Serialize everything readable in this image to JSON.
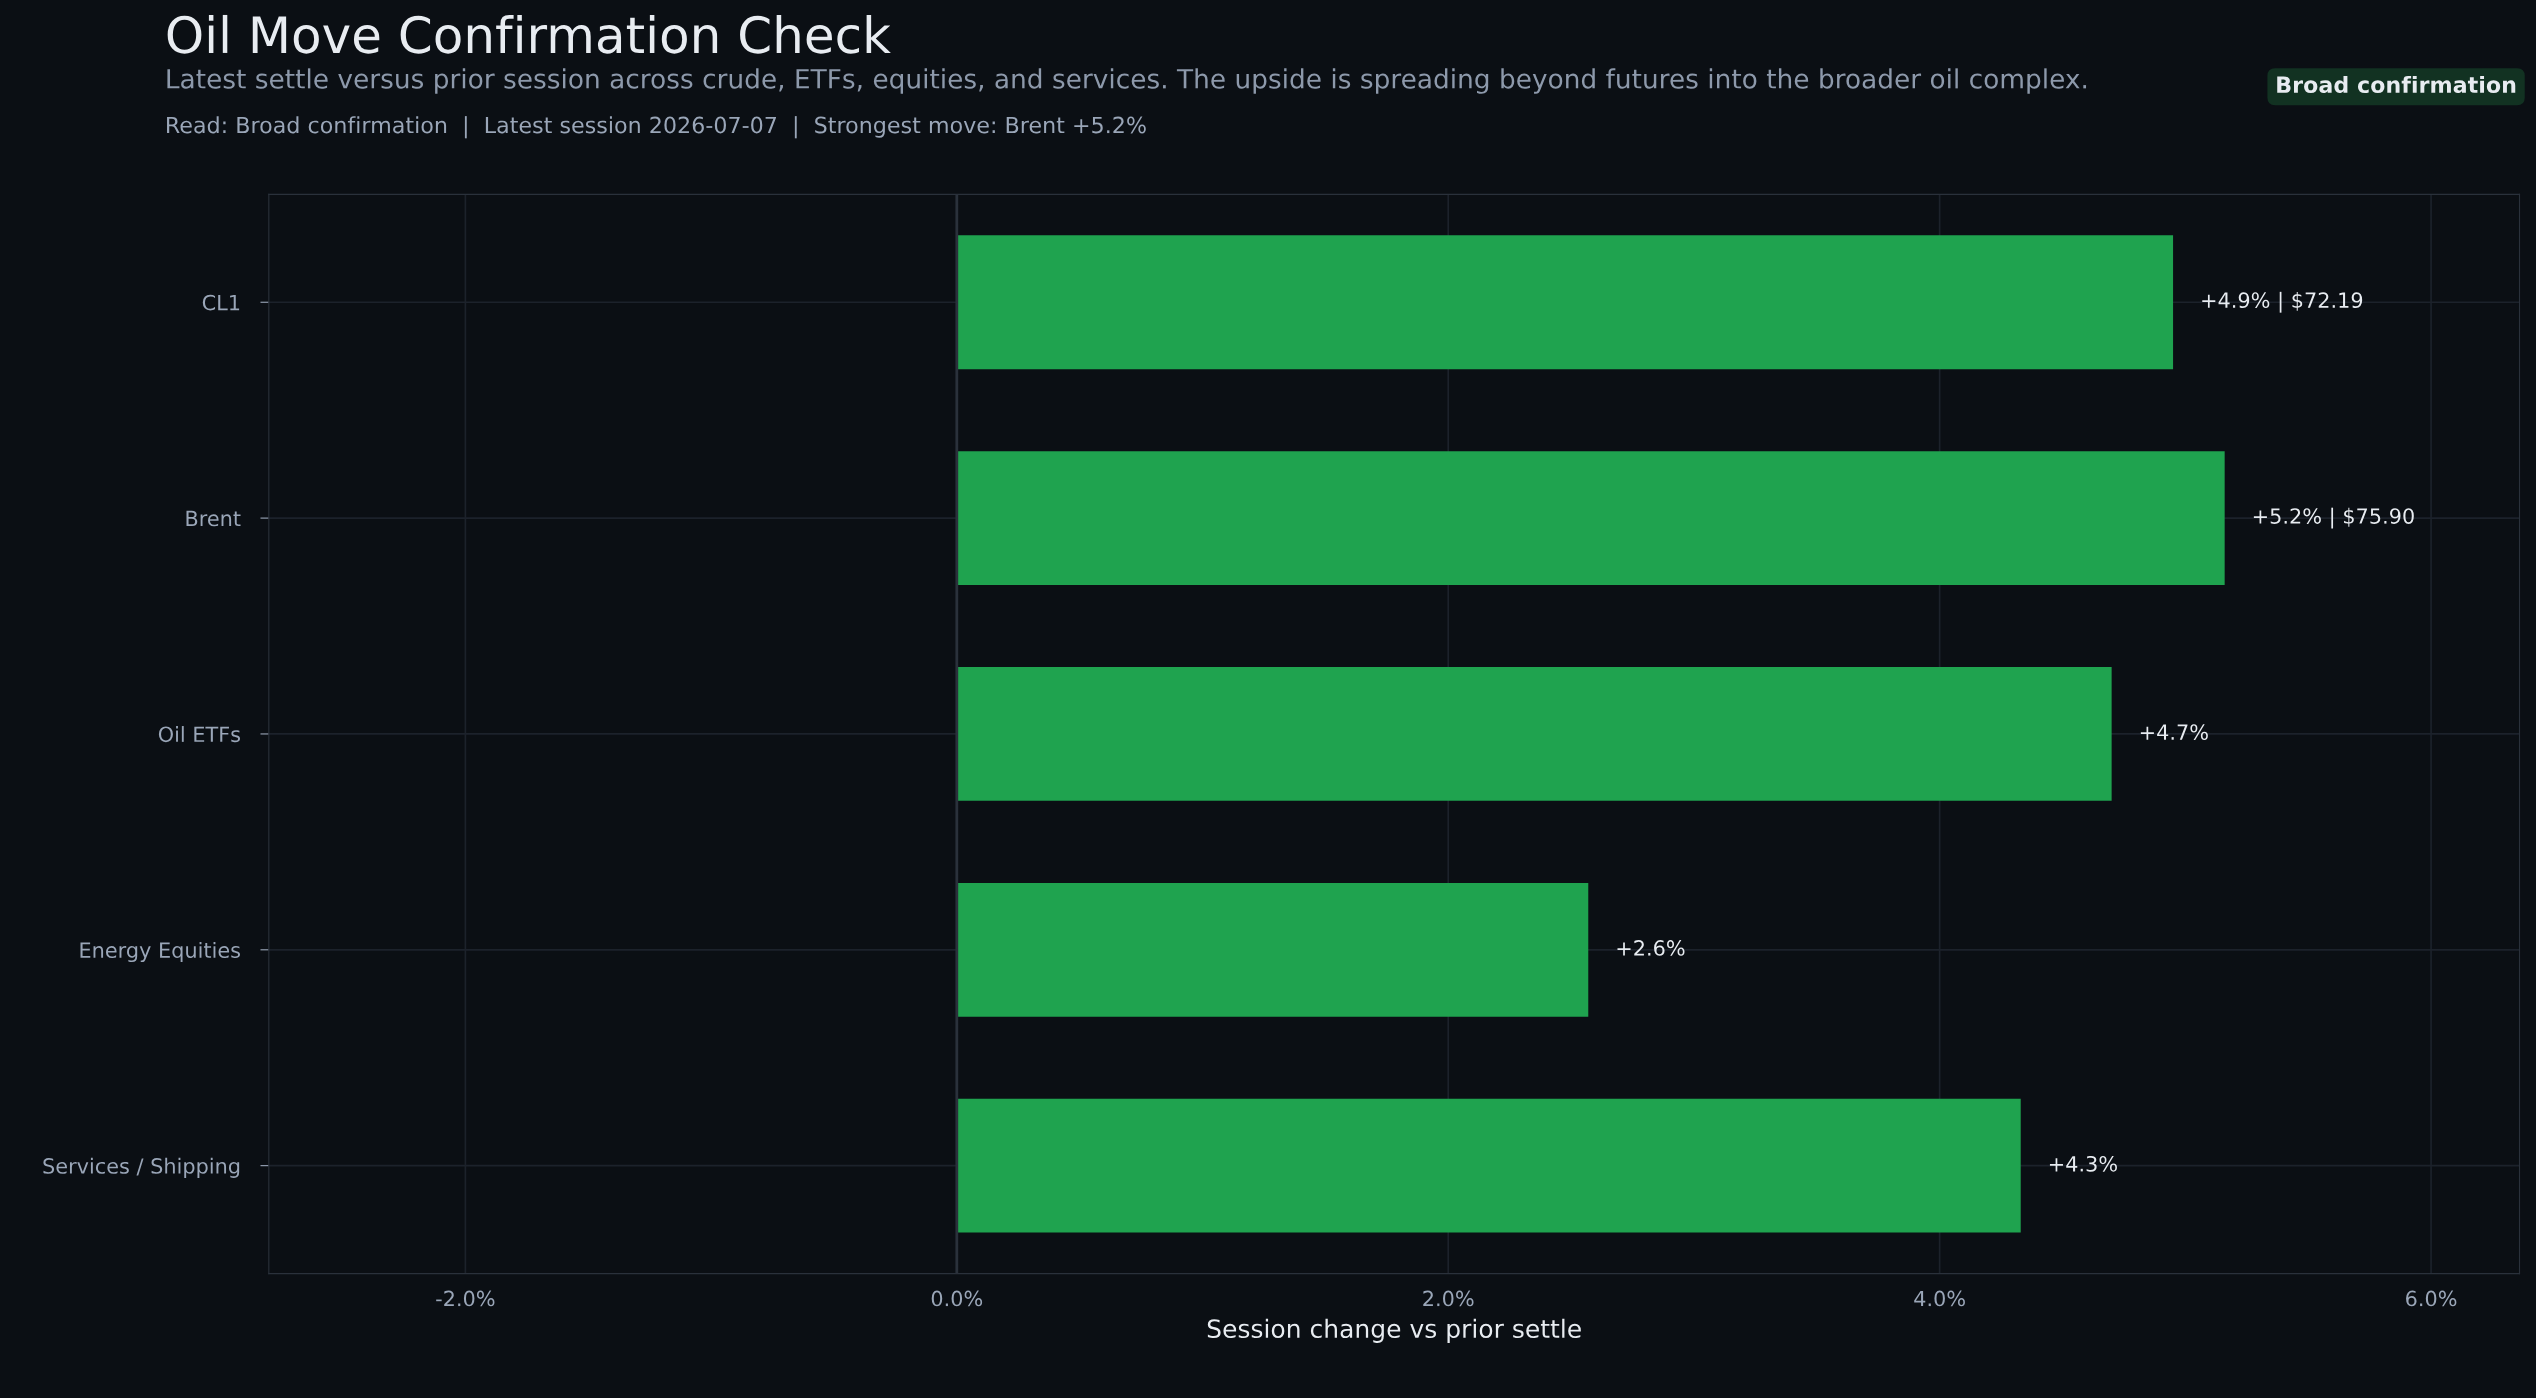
{
  "chart_data": {
    "type": "bar",
    "orientation": "horizontal",
    "title": "Oil Move Confirmation Check",
    "subtitle": "Latest settle versus prior session across crude, ETFs, equities, and services. The upside is spreading beyond futures into the broader oil complex.",
    "annotations": [
      "Read: Broad confirmation  |  Latest session 2026-07-07  |  Strongest move: Brent +5.2%",
      "Broad confirmation"
    ],
    "xlabel": "Session change vs prior settle",
    "categories": [
      "CL1",
      "Brent",
      "Oil ETFs",
      "Energy Equities",
      "Services / Shipping"
    ],
    "values": [
      4.95,
      5.16,
      4.7,
      2.57,
      4.33
    ],
    "value_labels": [
      "+4.9% | $72.19",
      "+5.2% | $75.90",
      "+4.7%",
      "+2.6%",
      "+4.3%"
    ],
    "color": "#1fa34f",
    "xlim": [
      -2.8,
      6.36
    ],
    "xticks": [
      {
        "value": -2,
        "label": "-2.0%"
      },
      {
        "value": 0,
        "label": "0.0%"
      },
      {
        "value": 2,
        "label": "2.0%"
      },
      {
        "value": 4,
        "label": "4.0%"
      },
      {
        "value": 6,
        "label": "6.0%"
      }
    ],
    "ref_lines": [
      {
        "axis": "x",
        "value": 0,
        "label": null,
        "color": "#2a313b"
      }
    ],
    "grid": true,
    "legend": false
  }
}
